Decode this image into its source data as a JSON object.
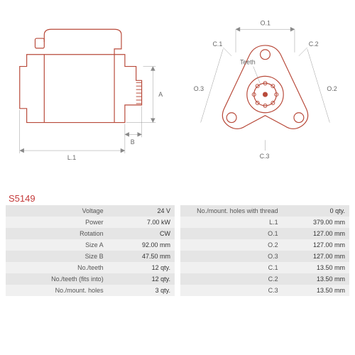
{
  "part_number": "S5149",
  "diagram_left": {
    "labels": {
      "A": "A",
      "B": "B",
      "L1": "L.1"
    },
    "stroke_color": "#b84a3a",
    "dim_color": "#888"
  },
  "diagram_right": {
    "labels": {
      "O1": "O.1",
      "O2": "O.2",
      "O3": "O.3",
      "C1": "C.1",
      "C2": "C.2",
      "C3": "C.3",
      "teeth": "Teeth"
    },
    "stroke_color": "#b84a3a",
    "dim_color": "#888"
  },
  "specs_left": [
    {
      "label": "Voltage",
      "value": "24 V"
    },
    {
      "label": "Power",
      "value": "7.00 kW"
    },
    {
      "label": "Rotation",
      "value": "CW"
    },
    {
      "label": "Size A",
      "value": "92.00 mm"
    },
    {
      "label": "Size B",
      "value": "47.50 mm"
    },
    {
      "label": "No./teeth",
      "value": "12 qty."
    },
    {
      "label": "No./teeth (fits into)",
      "value": "12 qty."
    },
    {
      "label": "No./mount. holes",
      "value": "3 qty."
    }
  ],
  "specs_right": [
    {
      "label": "No./mount. holes with thread",
      "value": "0 qty."
    },
    {
      "label": "L.1",
      "value": "379.00 mm"
    },
    {
      "label": "O.1",
      "value": "127.00 mm"
    },
    {
      "label": "O.2",
      "value": "127.00 mm"
    },
    {
      "label": "O.3",
      "value": "127.00 mm"
    },
    {
      "label": "C.1",
      "value": "13.50 mm"
    },
    {
      "label": "C.2",
      "value": "13.50 mm"
    },
    {
      "label": "C.3",
      "value": "13.50 mm"
    }
  ],
  "colors": {
    "row_odd": "#e5e5e5",
    "row_even": "#f0f0f0",
    "text": "#555",
    "accent": "#c43a3a"
  }
}
